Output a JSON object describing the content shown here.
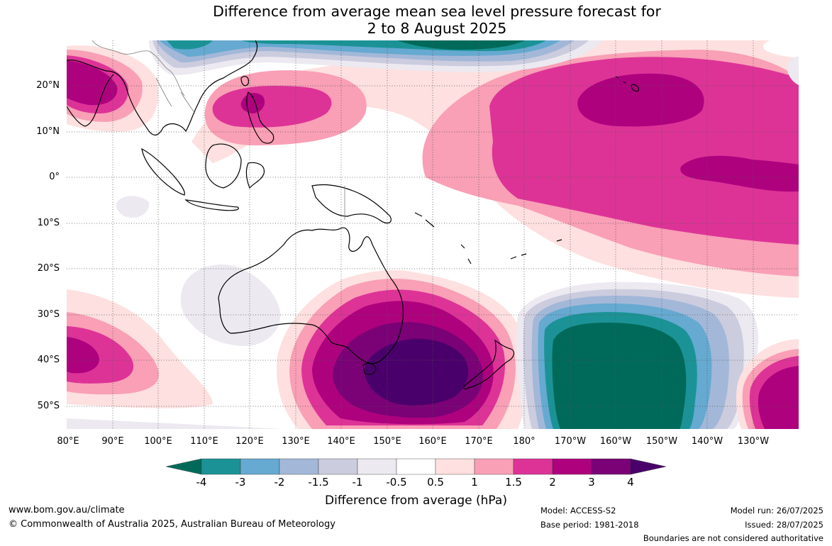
{
  "title": {
    "line1": "Difference from average mean sea level pressure forecast for",
    "line2": "2 to 8 August 2025"
  },
  "lat_labels": [
    "20°N",
    "10°N",
    "0°",
    "10°S",
    "20°S",
    "30°S",
    "40°S",
    "50°S"
  ],
  "lon_labels": [
    "80°E",
    "90°E",
    "100°E",
    "110°E",
    "120°E",
    "130°E",
    "140°E",
    "150°E",
    "160°E",
    "170°E",
    "180°",
    "170°W",
    "160°W",
    "150°W",
    "140°W",
    "130°W"
  ],
  "colorbar": {
    "title": "Difference from average (hPa)",
    "tick_labels": [
      "-4",
      "-3",
      "-2",
      "-1.5",
      "-1",
      "-0.5",
      "0.5",
      "1",
      "1.5",
      "2",
      "3",
      "4"
    ],
    "bins": [
      {
        "range": "< -4",
        "color": "#006a5a"
      },
      {
        "range": "-4 to -3",
        "color": "#1b9396"
      },
      {
        "range": "-3 to -2",
        "color": "#66a9d1"
      },
      {
        "range": "-2 to -1.5",
        "color": "#a3b8d8"
      },
      {
        "range": "-1.5 to -1",
        "color": "#ccccdf"
      },
      {
        "range": "-1 to -0.5",
        "color": "#ece9f1"
      },
      {
        "range": "-0.5 to 0.5",
        "color": "#ffffff"
      },
      {
        "range": "0.5 to 1",
        "color": "#fde0df"
      },
      {
        "range": "1 to 1.5",
        "color": "#f99fb6"
      },
      {
        "range": "1.5 to 2",
        "color": "#dd3397"
      },
      {
        "range": "2 to 3",
        "color": "#ae017e"
      },
      {
        "range": "3 to 4",
        "color": "#7a0176"
      },
      {
        "range": "> 4",
        "color": "#4a006a"
      }
    ]
  },
  "footer": {
    "website": "www.bom.gov.au/climate",
    "copyright": "© Commonwealth of Australia 2025, Australian Bureau of Meteorology",
    "model": "Model: ACCESS-S2",
    "base_period": "Base period: 1981-2018",
    "model_run": "Model run: 26/07/2025",
    "issued": "Issued: 28/07/2025",
    "disclaimer": "Boundaries are not considered authoritative"
  },
  "map": {
    "features": [
      {
        "name": "anomaly-high-east-australia",
        "color": "#4a006a",
        "value": "> 4 hPa"
      },
      {
        "name": "anomaly-high-north-pacific",
        "color": "#ae017e",
        "value": "2 to 3 hPa"
      },
      {
        "name": "anomaly-high-philippines",
        "color": "#ae017e",
        "value": "2 to 3 hPa"
      },
      {
        "name": "anomaly-high-bay-of-bengal",
        "color": "#ae017e",
        "value": "2 to 3 hPa"
      },
      {
        "name": "anomaly-high-south-indian-ocean",
        "color": "#dd3397",
        "value": "1.5 to 2 hPa"
      },
      {
        "name": "anomaly-high-southeast-pacific",
        "color": "#ae017e",
        "value": "2 to 3 hPa"
      },
      {
        "name": "anomaly-low-south-pacific",
        "color": "#006a5a",
        "value": "< -4 hPa"
      },
      {
        "name": "anomaly-low-north",
        "color": "#006a5a",
        "value": "< -4 hPa"
      }
    ]
  }
}
